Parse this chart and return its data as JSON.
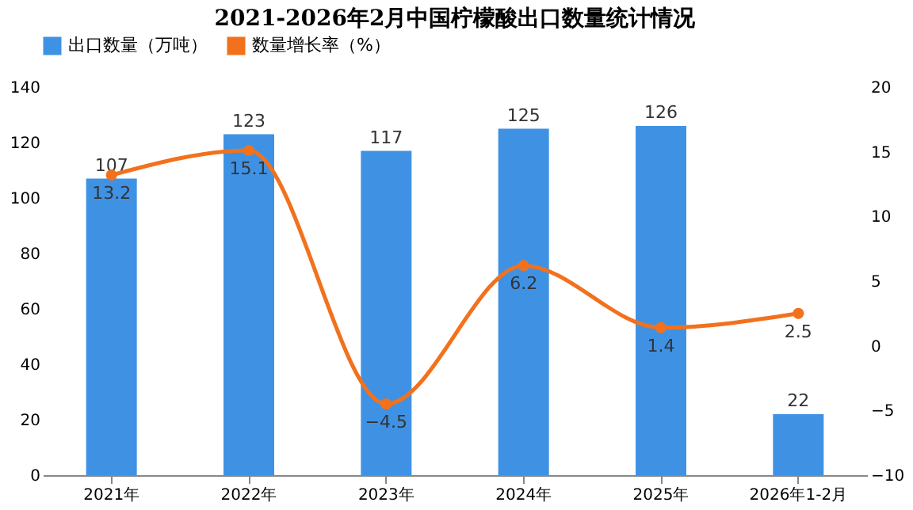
{
  "chart_data": {
    "type": "bar",
    "title": "2021-2026年2月中国柠檬酸出口数量统计情况",
    "categories": [
      "2021年",
      "2022年",
      "2023年",
      "2024年",
      "2025年",
      "2026年1-2月"
    ],
    "series": [
      {
        "name": "出口数量（万吨）",
        "color": "#3f92e3",
        "values": [
          107,
          123,
          117,
          125,
          126,
          22
        ]
      },
      {
        "name": "数量增长率（%）",
        "type": "line",
        "axis": "y2",
        "color": "#f2711c",
        "values": [
          13.2,
          15.1,
          -4.5,
          6.2,
          1.4,
          2.5
        ]
      }
    ],
    "ylim": [
      0,
      140
    ],
    "yticks": [
      0,
      20,
      40,
      60,
      80,
      100,
      120,
      140
    ],
    "y2lim": [
      -10,
      20
    ],
    "y2ticks": [
      -10,
      -5,
      0,
      5,
      10,
      15,
      20
    ],
    "data_labels": true,
    "legend": "top",
    "grid": false,
    "marker": "circle",
    "line_style": "solid"
  }
}
